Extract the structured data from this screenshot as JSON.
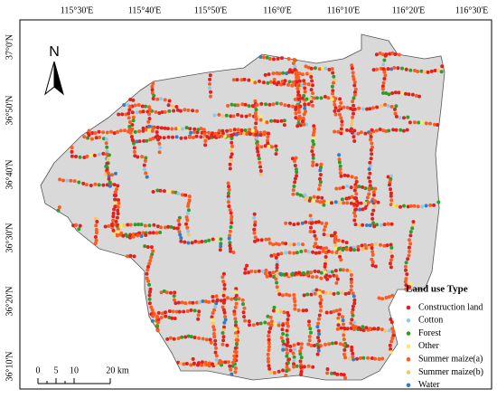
{
  "map": {
    "top_labels": [
      "115°30'E",
      "115°40'E",
      "115°50'E",
      "116°0'E",
      "116°10'E",
      "116°20'E",
      "116°30'E"
    ],
    "left_labels": [
      "37°0'N",
      "36°50'N",
      "36°40'N",
      "36°30'N",
      "36°20'N",
      "36°10'N"
    ],
    "north": "N",
    "scale_labels": [
      "0",
      "5",
      "10",
      "20 km"
    ],
    "legend": {
      "title": "Land use Type",
      "items": [
        {
          "label": "Construction land",
          "color": "#e3211c"
        },
        {
          "label": "Cotton",
          "color": "#8ecae6"
        },
        {
          "label": "Forest",
          "color": "#2e9e2a"
        },
        {
          "label": "Other",
          "color": "#f2ef5a"
        },
        {
          "label": "Summer maize(a)",
          "color": "#ff5a1f"
        },
        {
          "label": "Summer maize(b)",
          "color": "#fbc46a"
        },
        {
          "label": "Water",
          "color": "#2f7fc1"
        }
      ]
    }
  }
}
